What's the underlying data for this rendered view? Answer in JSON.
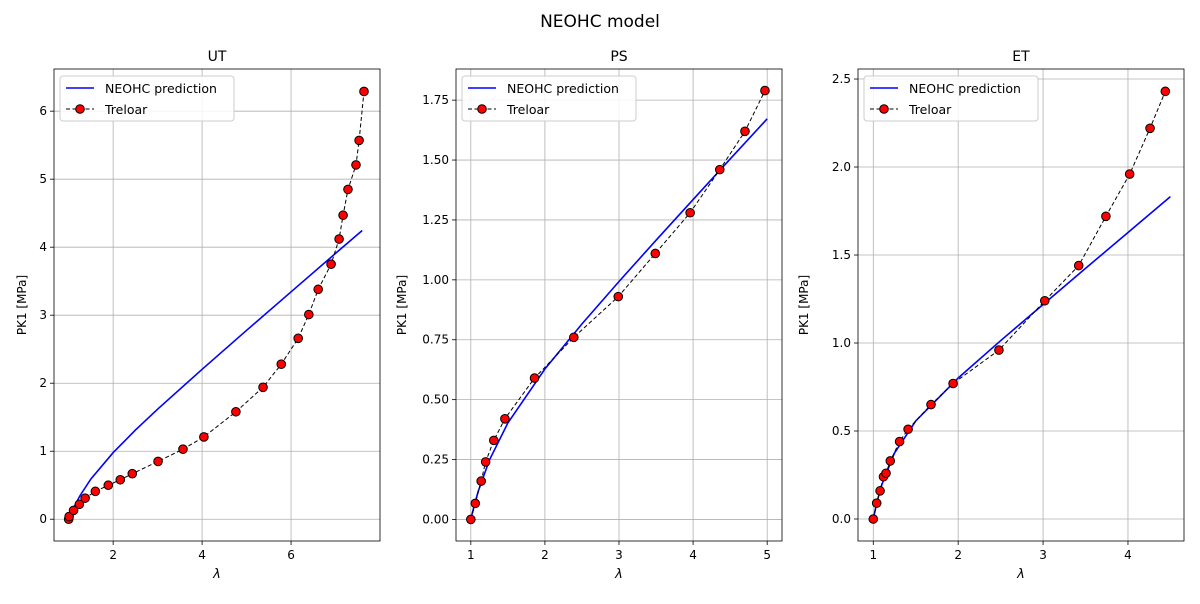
{
  "figure": {
    "title": "NEOHC model"
  },
  "colors": {
    "model": "#0000ff",
    "data_face": "#ff0000",
    "data_edge": "#000000",
    "grid": "#b0b0b0"
  },
  "chart_data": [
    {
      "type": "line",
      "title": "UT",
      "xlabel": "λ",
      "ylabel": "PK1 [MPa]",
      "xlim": [
        0.67,
        8.0
      ],
      "ylim": [
        -0.32,
        6.62
      ],
      "xticks": [
        2,
        4,
        6
      ],
      "yticks": [
        0,
        1,
        2,
        3,
        4,
        5,
        6
      ],
      "grid": true,
      "legend": "top-left",
      "series": [
        {
          "name": "NEOHC prediction",
          "style": "solid-line",
          "x": [
            1,
            1.02,
            1.05,
            1.1,
            1.25,
            1.5,
            2,
            2.5,
            3,
            4,
            5,
            6,
            7,
            7.6
          ],
          "y": [
            0,
            0.033,
            0.08,
            0.153,
            0.342,
            0.591,
            0.98,
            1.31,
            1.618,
            2.205,
            2.778,
            3.344,
            3.909,
            4.246
          ]
        },
        {
          "name": "Treloar",
          "style": "dashed-markers",
          "x": [
            1.0,
            1.01,
            1.11,
            1.24,
            1.37,
            1.6,
            1.89,
            2.16,
            2.43,
            3.01,
            3.57,
            4.04,
            4.76,
            5.37,
            5.78,
            6.16,
            6.4,
            6.61,
            6.9,
            7.08,
            7.17,
            7.28,
            7.46,
            7.53,
            7.64
          ],
          "y": [
            0,
            0.04,
            0.13,
            0.22,
            0.31,
            0.41,
            0.5,
            0.58,
            0.67,
            0.85,
            1.03,
            1.21,
            1.58,
            1.94,
            2.28,
            2.66,
            3.01,
            3.38,
            3.75,
            4.12,
            4.47,
            4.85,
            5.21,
            5.57,
            6.29
          ]
        }
      ]
    },
    {
      "type": "line",
      "title": "PS",
      "xlabel": "λ",
      "ylabel": "PK1 [MPa]",
      "xlim": [
        0.8,
        5.2
      ],
      "ylim": [
        -0.09,
        1.88
      ],
      "xticks": [
        1,
        2,
        3,
        4,
        5
      ],
      "yticks": [
        0.0,
        0.25,
        0.5,
        0.75,
        1.0,
        1.25,
        1.5,
        1.75
      ],
      "ytick_labels": [
        "0.00",
        "0.25",
        "0.50",
        "0.75",
        "1.00",
        "1.25",
        "1.50",
        "1.75"
      ],
      "grid": true,
      "legend": "top-left",
      "series": [
        {
          "name": "NEOHC prediction",
          "style": "solid-line",
          "x": [
            1,
            1.02,
            1.05,
            1.1,
            1.25,
            1.5,
            2,
            2.5,
            3,
            3.5,
            4,
            4.5,
            5
          ],
          "y": [
            0,
            0.026,
            0.062,
            0.117,
            0.247,
            0.403,
            0.628,
            0.816,
            0.993,
            1.165,
            1.335,
            1.504,
            1.672
          ]
        },
        {
          "name": "Treloar",
          "style": "dashed-markers",
          "x": [
            1.0,
            1.06,
            1.14,
            1.2,
            1.31,
            1.46,
            1.86,
            2.39,
            2.99,
            3.49,
            3.96,
            4.36,
            4.7,
            4.97
          ],
          "y": [
            0,
            0.067,
            0.16,
            0.24,
            0.33,
            0.42,
            0.59,
            0.76,
            0.93,
            1.11,
            1.28,
            1.46,
            1.62,
            1.79
          ]
        }
      ]
    },
    {
      "type": "line",
      "title": "ET",
      "xlabel": "λ",
      "ylabel": "PK1 [MPa]",
      "xlim": [
        0.82,
        4.66
      ],
      "ylim": [
        -0.125,
        2.557
      ],
      "xticks": [
        1,
        2,
        3,
        4
      ],
      "yticks": [
        0.0,
        0.5,
        1.0,
        1.5,
        2.0,
        2.5
      ],
      "ytick_labels": [
        "0.0",
        "0.5",
        "1.0",
        "1.5",
        "2.0",
        "2.5"
      ],
      "grid": true,
      "legend": "top-left",
      "series": [
        {
          "name": "NEOHC prediction",
          "style": "solid-line",
          "x": [
            1,
            1.02,
            1.05,
            1.1,
            1.25,
            1.5,
            2,
            2.5,
            3,
            3.5,
            4,
            4.5
          ],
          "y": [
            0,
            0.046,
            0.108,
            0.195,
            0.375,
            0.557,
            0.801,
            1.013,
            1.219,
            1.424,
            1.628,
            1.832
          ]
        },
        {
          "name": "Treloar",
          "style": "dashed-markers",
          "x": [
            1.0,
            1.04,
            1.08,
            1.12,
            1.15,
            1.2,
            1.31,
            1.41,
            1.68,
            1.94,
            2.48,
            3.02,
            3.42,
            3.74,
            4.02,
            4.26,
            4.44
          ],
          "y": [
            0,
            0.09,
            0.16,
            0.24,
            0.26,
            0.33,
            0.44,
            0.51,
            0.65,
            0.77,
            0.96,
            1.24,
            1.44,
            1.72,
            1.96,
            2.22,
            2.43
          ]
        }
      ]
    }
  ]
}
